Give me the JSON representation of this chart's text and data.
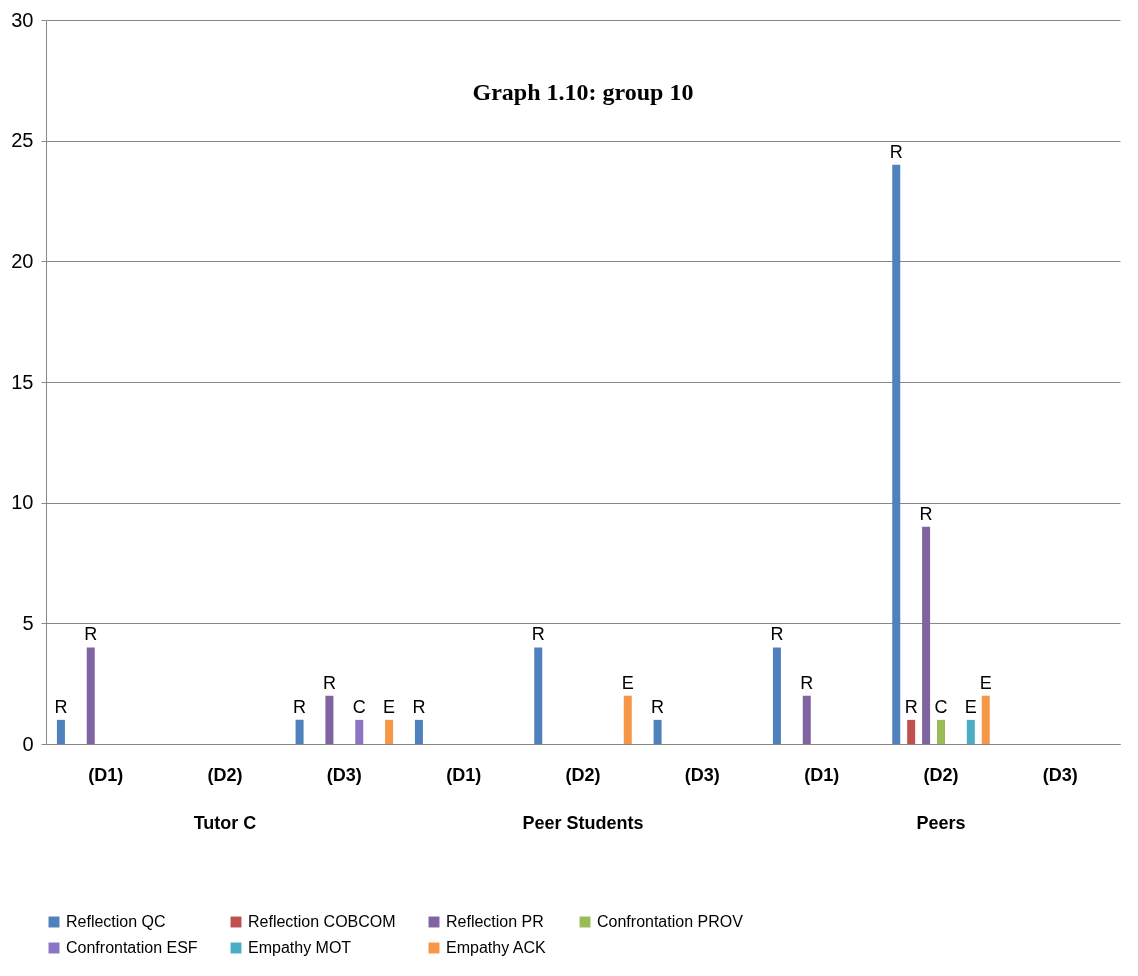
{
  "chart_data": {
    "type": "bar",
    "title": "Graph 1.10: group 10",
    "categories": [
      "(D1)",
      "(D2)",
      "(D3)",
      "(D1)",
      "(D2)",
      "(D3)",
      "(D1)",
      "(D2)",
      "(D3)"
    ],
    "series": [
      {
        "name": "Reflection QC",
        "color": "#4f81bd",
        "values": [
          1,
          null,
          1,
          1,
          4,
          1,
          4,
          24,
          null
        ],
        "value_labels": [
          "R",
          null,
          "R",
          "R",
          "R",
          "R",
          "R",
          "R",
          null
        ]
      },
      {
        "name": "Reflection COBCOM",
        "color": "#c0504d",
        "values": [
          null,
          null,
          null,
          null,
          null,
          null,
          null,
          1,
          null
        ],
        "value_labels": [
          null,
          null,
          null,
          null,
          null,
          null,
          null,
          "R",
          null
        ]
      },
      {
        "name": "Reflection PR",
        "color": "#8064a2",
        "values": [
          4,
          null,
          2,
          null,
          null,
          null,
          2,
          9,
          null
        ],
        "value_labels": [
          "R",
          null,
          "R",
          null,
          null,
          null,
          "R",
          "R",
          null
        ]
      },
      {
        "name": "Confrontation PROV",
        "color": "#9bbb59",
        "values": [
          null,
          null,
          null,
          null,
          null,
          null,
          null,
          1,
          null
        ],
        "value_labels": [
          null,
          null,
          null,
          null,
          null,
          null,
          null,
          "C",
          null
        ]
      },
      {
        "name": "Confrontation ESF",
        "color": "#8c75c4",
        "values": [
          null,
          null,
          1,
          null,
          null,
          null,
          null,
          null,
          null
        ],
        "value_labels": [
          null,
          null,
          "C",
          null,
          null,
          null,
          null,
          null,
          null
        ]
      },
      {
        "name": "Empathy MOT",
        "color": "#4bacc6",
        "values": [
          null,
          null,
          null,
          null,
          null,
          null,
          null,
          1,
          null
        ],
        "value_labels": [
          null,
          null,
          null,
          null,
          null,
          null,
          null,
          "E",
          null
        ]
      },
      {
        "name": "Empathy ACK",
        "color": "#f79646",
        "values": [
          null,
          null,
          1,
          null,
          2,
          null,
          null,
          2,
          null
        ],
        "value_labels": [
          null,
          null,
          "E",
          null,
          "E",
          null,
          null,
          "E",
          null
        ]
      }
    ],
    "annotations": [
      "Tutor C",
      "Peer Students",
      "Peers"
    ],
    "ylim": [
      0,
      30
    ],
    "yticks": [
      0,
      5,
      10,
      15,
      20,
      25,
      30
    ],
    "grid": "y",
    "legend": "bottom"
  }
}
